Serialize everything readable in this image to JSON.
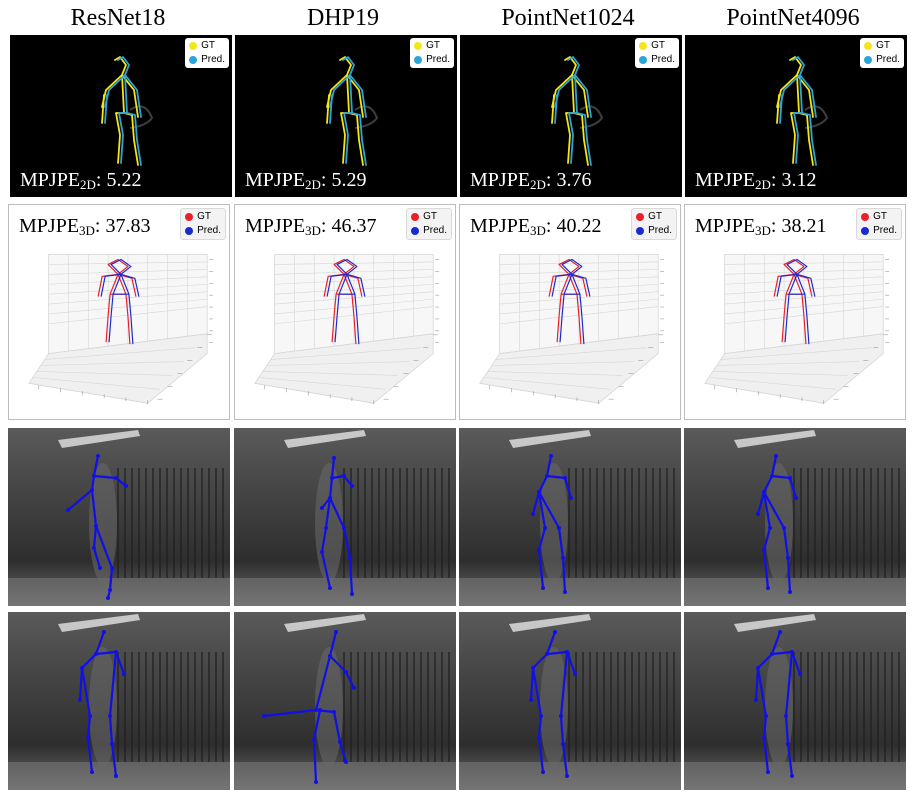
{
  "columns": [
    {
      "title": "ResNet18",
      "mpjpe2d": "5.22",
      "mpjpe3d": "37.83"
    },
    {
      "title": "DHP19",
      "mpjpe2d": "5.29",
      "mpjpe3d": "46.37"
    },
    {
      "title": "PointNet1024",
      "mpjpe2d": "3.76",
      "mpjpe3d": "40.22"
    },
    {
      "title": "PointNet4096",
      "mpjpe2d": "3.12",
      "mpjpe3d": "38.21"
    }
  ],
  "metric": {
    "base": "MPJPE",
    "sub_2d": "2D",
    "sub_3d": "3D",
    "sep": ": "
  },
  "legend": {
    "gt": "GT",
    "pred": "Pred."
  },
  "colors": {
    "gt_2d": "#f5e51a",
    "pred_2d": "#2aa5d8",
    "gt_3d": "#e8202a",
    "pred_3d": "#1b2ad0",
    "skeleton_overlay": "#1010e6"
  }
}
